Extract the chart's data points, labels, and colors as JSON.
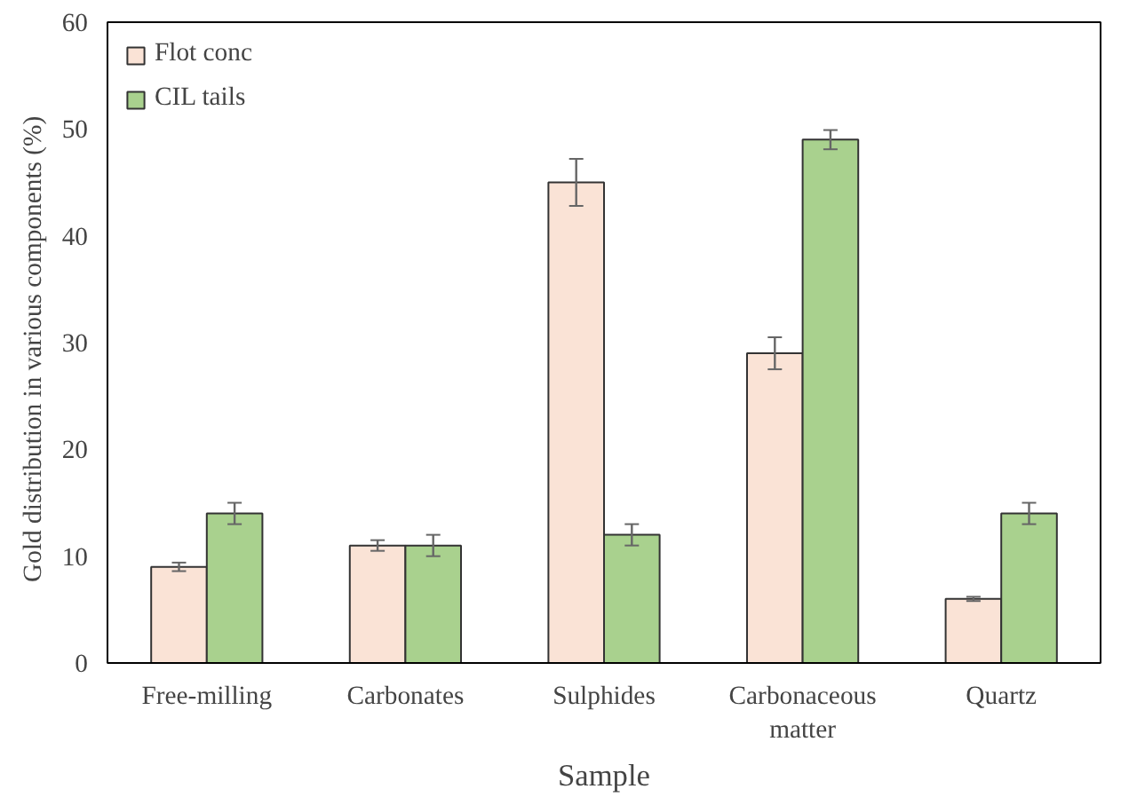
{
  "chart_data": {
    "type": "bar",
    "xlabel": "Sample",
    "ylabel": "Gold distribution  in various components  (%)",
    "categories": [
      "Free-milling",
      "Carbonates",
      "Sulphides",
      "Carbonaceous\nmatter",
      "Quartz"
    ],
    "series": [
      {
        "name": "Flot conc",
        "color": "#fae3d6",
        "values": [
          9,
          11,
          45,
          29,
          6
        ],
        "errors": [
          0.4,
          0.5,
          2.2,
          1.5,
          0.2
        ]
      },
      {
        "name": "CIL tails",
        "color": "#a9d18e",
        "values": [
          14,
          11,
          12,
          49,
          14
        ],
        "errors": [
          1,
          1,
          1,
          0.9,
          1
        ]
      }
    ],
    "ylim": [
      0,
      60
    ],
    "yticks": [
      0,
      10,
      20,
      30,
      40,
      50,
      60
    ],
    "grid": false,
    "legend": "top left"
  }
}
